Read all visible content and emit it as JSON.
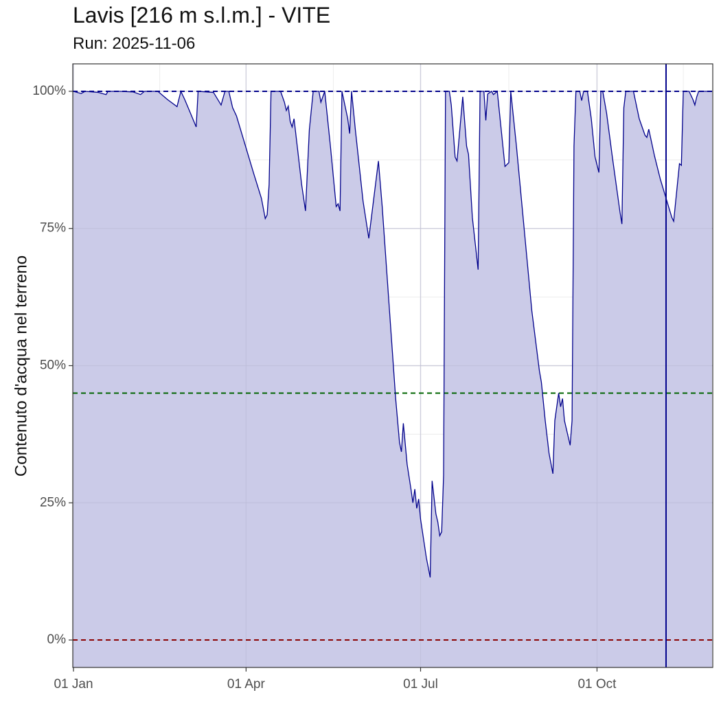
{
  "chart": {
    "title": "Lavis [216 m s.l.m.] - VITE",
    "subtitle": "Run: 2025-11-06",
    "ylabel": "Contenuto d'acqua nel terreno"
  },
  "chart_data": {
    "type": "area",
    "title": "Lavis [216 m s.l.m.] - VITE",
    "subtitle": "Run: 2025-11-06",
    "xlabel": "",
    "ylabel": "Contenuto d'acqua nel terreno",
    "xlim": [
      "2025-01-01",
      "2025-11-30"
    ],
    "ylim": [
      -5,
      105
    ],
    "x_ticks": [
      {
        "date": "2025-01-01",
        "label": "01 Jan"
      },
      {
        "date": "2025-04-01",
        "label": "01 Apr"
      },
      {
        "date": "2025-07-01",
        "label": "01 Jul"
      },
      {
        "date": "2025-10-01",
        "label": "01 Oct"
      }
    ],
    "y_ticks": [
      {
        "value": 0,
        "label": "0%"
      },
      {
        "value": 25,
        "label": "25%"
      },
      {
        "value": 50,
        "label": "50%"
      },
      {
        "value": 75,
        "label": "75%"
      },
      {
        "value": 100,
        "label": "100%"
      }
    ],
    "reference_lines": [
      {
        "value": 100,
        "color": "#00008b",
        "style": "dashed"
      },
      {
        "value": 45,
        "color": "#006400",
        "style": "dashed"
      },
      {
        "value": 0,
        "color": "#8b0000",
        "style": "dashed"
      }
    ],
    "run_date_line": {
      "date": "2025-11-06",
      "color": "#00008b"
    },
    "grid": true,
    "colors": {
      "line": "#00008b",
      "fill": "#cbcbe8"
    },
    "series": [
      {
        "points": [
          [
            "2025-01-01",
            100
          ],
          [
            "2025-01-05",
            99.6
          ],
          [
            "2025-01-07",
            100
          ],
          [
            "2025-01-14",
            99.8
          ],
          [
            "2025-01-18",
            99.4
          ],
          [
            "2025-01-19",
            100
          ],
          [
            "2025-01-25",
            100
          ],
          [
            "2025-02-01",
            99.9
          ],
          [
            "2025-02-05",
            99.4
          ],
          [
            "2025-02-07",
            100
          ],
          [
            "2025-02-14",
            100
          ],
          [
            "2025-02-19",
            98.5
          ],
          [
            "2025-02-24",
            97.2
          ],
          [
            "2025-02-26",
            100
          ],
          [
            "2025-02-28",
            98.5
          ],
          [
            "2025-03-03",
            96
          ],
          [
            "2025-03-06",
            93.5
          ],
          [
            "2025-03-07",
            100
          ],
          [
            "2025-03-15",
            99.8
          ],
          [
            "2025-03-19",
            97.5
          ],
          [
            "2025-03-21",
            100
          ],
          [
            "2025-03-23",
            100
          ],
          [
            "2025-03-25",
            97
          ],
          [
            "2025-03-27",
            95.5
          ],
          [
            "2025-04-05",
            85
          ],
          [
            "2025-04-09",
            80.5
          ],
          [
            "2025-04-11",
            76.8
          ],
          [
            "2025-04-12",
            77.5
          ],
          [
            "2025-04-13",
            83
          ],
          [
            "2025-04-14",
            100
          ],
          [
            "2025-04-19",
            100
          ],
          [
            "2025-04-21",
            98
          ],
          [
            "2025-04-22",
            96.5
          ],
          [
            "2025-04-23",
            97.3
          ],
          [
            "2025-04-24",
            94.5
          ],
          [
            "2025-04-25",
            93.5
          ],
          [
            "2025-04-26",
            95
          ],
          [
            "2025-04-28",
            89
          ],
          [
            "2025-04-30",
            83
          ],
          [
            "2025-05-02",
            78.2
          ],
          [
            "2025-05-04",
            93
          ],
          [
            "2025-05-06",
            100
          ],
          [
            "2025-05-09",
            100
          ],
          [
            "2025-05-10",
            98
          ],
          [
            "2025-05-12",
            100
          ],
          [
            "2025-05-15",
            90
          ],
          [
            "2025-05-18",
            79
          ],
          [
            "2025-05-19",
            79.5
          ],
          [
            "2025-05-20",
            78.2
          ],
          [
            "2025-05-21",
            100
          ],
          [
            "2025-05-24",
            95
          ],
          [
            "2025-05-25",
            92.3
          ],
          [
            "2025-05-26",
            100
          ],
          [
            "2025-05-28",
            93
          ],
          [
            "2025-06-01",
            80
          ],
          [
            "2025-06-04",
            73.2
          ],
          [
            "2025-06-05",
            76
          ],
          [
            "2025-06-09",
            87.3
          ],
          [
            "2025-06-11",
            79
          ],
          [
            "2025-06-18",
            44
          ],
          [
            "2025-06-20",
            36
          ],
          [
            "2025-06-21",
            34.3
          ],
          [
            "2025-06-22",
            39.5
          ],
          [
            "2025-06-24",
            32
          ],
          [
            "2025-06-26",
            27.5
          ],
          [
            "2025-06-27",
            25
          ],
          [
            "2025-06-28",
            27.5
          ],
          [
            "2025-06-29",
            24
          ],
          [
            "2025-06-30",
            25.7
          ],
          [
            "2025-07-01",
            22
          ],
          [
            "2025-07-04",
            15
          ],
          [
            "2025-07-06",
            11.4
          ],
          [
            "2025-07-07",
            29
          ],
          [
            "2025-07-09",
            23
          ],
          [
            "2025-07-10",
            21.5
          ],
          [
            "2025-07-11",
            19
          ],
          [
            "2025-07-12",
            19.7
          ],
          [
            "2025-07-13",
            30
          ],
          [
            "2025-07-14",
            100
          ],
          [
            "2025-07-16",
            100
          ],
          [
            "2025-07-17",
            97.5
          ],
          [
            "2025-07-19",
            88
          ],
          [
            "2025-07-20",
            87.3
          ],
          [
            "2025-07-23",
            99
          ],
          [
            "2025-07-25",
            90
          ],
          [
            "2025-07-26",
            88.5
          ],
          [
            "2025-07-28",
            77
          ],
          [
            "2025-07-31",
            67.5
          ],
          [
            "2025-08-01",
            100
          ],
          [
            "2025-08-03",
            100
          ],
          [
            "2025-08-04",
            94.7
          ],
          [
            "2025-08-05",
            99.5
          ],
          [
            "2025-08-07",
            100
          ],
          [
            "2025-08-08",
            99.4
          ],
          [
            "2025-08-10",
            100
          ],
          [
            "2025-08-14",
            86.3
          ],
          [
            "2025-08-16",
            87
          ],
          [
            "2025-08-17",
            100
          ],
          [
            "2025-08-20",
            90
          ],
          [
            "2025-08-24",
            75
          ],
          [
            "2025-08-28",
            60
          ],
          [
            "2025-09-01",
            49
          ],
          [
            "2025-09-02",
            47
          ],
          [
            "2025-09-04",
            40
          ],
          [
            "2025-09-06",
            34
          ],
          [
            "2025-09-08",
            30.3
          ],
          [
            "2025-09-09",
            40
          ],
          [
            "2025-09-11",
            45
          ],
          [
            "2025-09-12",
            42.5
          ],
          [
            "2025-09-13",
            44
          ],
          [
            "2025-09-14",
            40
          ],
          [
            "2025-09-17",
            35.5
          ],
          [
            "2025-09-18",
            40
          ],
          [
            "2025-09-19",
            90
          ],
          [
            "2025-09-20",
            100
          ],
          [
            "2025-09-22",
            100
          ],
          [
            "2025-09-23",
            98.3
          ],
          [
            "2025-09-24",
            100
          ],
          [
            "2025-09-25",
            100
          ],
          [
            "2025-09-26",
            100
          ],
          [
            "2025-09-28",
            95
          ],
          [
            "2025-09-30",
            88
          ],
          [
            "2025-10-02",
            85.2
          ],
          [
            "2025-10-03",
            100
          ],
          [
            "2025-10-04",
            100
          ],
          [
            "2025-10-06",
            96
          ],
          [
            "2025-10-09",
            88
          ],
          [
            "2025-10-13",
            78
          ],
          [
            "2025-10-14",
            75.8
          ],
          [
            "2025-10-15",
            97
          ],
          [
            "2025-10-16",
            100
          ],
          [
            "2025-10-20",
            100
          ],
          [
            "2025-10-23",
            95
          ],
          [
            "2025-10-26",
            92
          ],
          [
            "2025-10-27",
            91.6
          ],
          [
            "2025-10-28",
            93.1
          ],
          [
            "2025-10-31",
            88.2
          ],
          [
            "2025-11-03",
            84
          ],
          [
            "2025-11-06",
            80.5
          ],
          [
            "2025-11-09",
            77
          ],
          [
            "2025-11-10",
            76.3
          ],
          [
            "2025-11-13",
            86.8
          ],
          [
            "2025-11-14",
            86.5
          ],
          [
            "2025-11-15",
            100
          ],
          [
            "2025-11-18",
            100
          ],
          [
            "2025-11-20",
            98.5
          ],
          [
            "2025-11-21",
            97.5
          ],
          [
            "2025-11-22",
            99
          ],
          [
            "2025-11-23",
            100
          ],
          [
            "2025-11-28",
            100
          ],
          [
            "2025-12-04",
            100
          ]
        ]
      }
    ]
  }
}
